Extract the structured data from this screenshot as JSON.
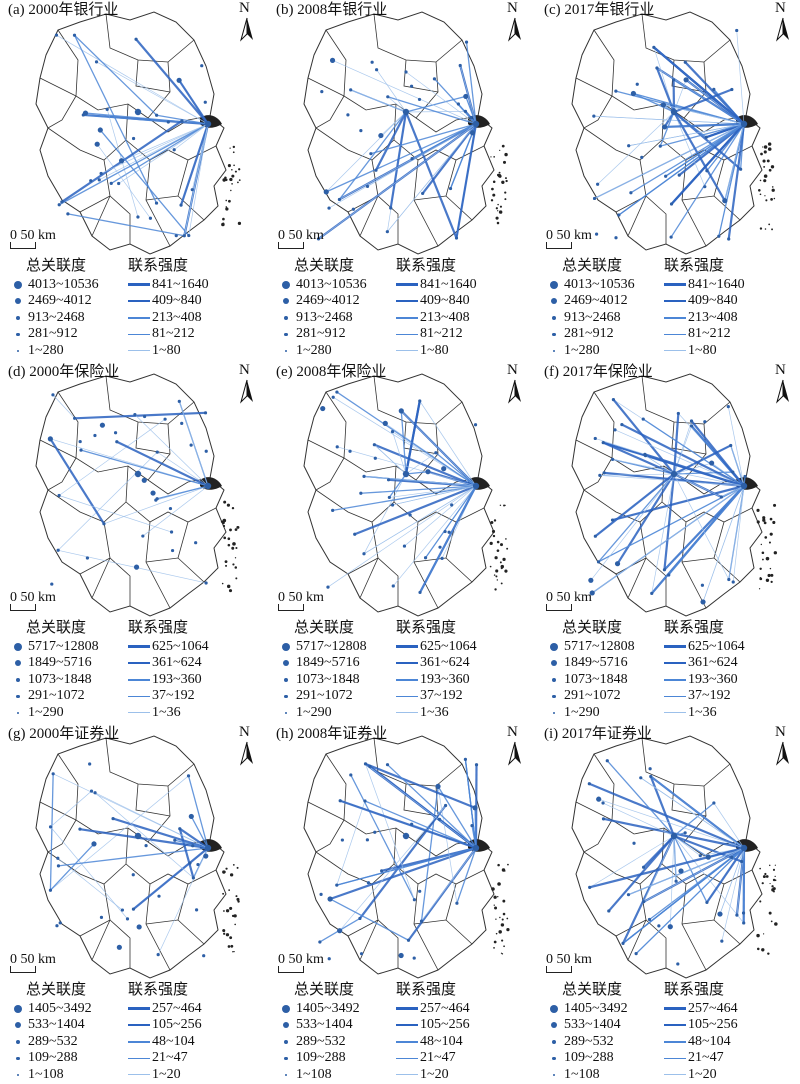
{
  "panels": [
    {
      "id": "a",
      "title": "(a) 2000年银行业",
      "sector": "bank",
      "year": 2000,
      "density": 0.35
    },
    {
      "id": "b",
      "title": "(b) 2008年银行业",
      "sector": "bank",
      "year": 2008,
      "density": 0.6
    },
    {
      "id": "c",
      "title": "(c) 2017年银行业",
      "sector": "bank",
      "year": 2017,
      "density": 1.0
    },
    {
      "id": "d",
      "title": "(d) 2000年保险业",
      "sector": "insurance",
      "year": 2000,
      "density": 0.15
    },
    {
      "id": "e",
      "title": "(e) 2008年保险业",
      "sector": "insurance",
      "year": 2008,
      "density": 0.55
    },
    {
      "id": "f",
      "title": "(f) 2017年保险业",
      "sector": "insurance",
      "year": 2017,
      "density": 1.0
    },
    {
      "id": "g",
      "title": "(g) 2000年证券业",
      "sector": "securities",
      "year": 2000,
      "density": 0.2
    },
    {
      "id": "h",
      "title": "(h) 2008年证券业",
      "sector": "securities",
      "year": 2008,
      "density": 0.4
    },
    {
      "id": "i",
      "title": "(i) 2017年证券业",
      "sector": "securities",
      "year": 2017,
      "density": 0.8
    }
  ],
  "legends": {
    "bank": {
      "node_title": "总关联度",
      "node_classes": [
        "4013~10536",
        "2469~4012",
        "913~2468",
        "281~912",
        "1~280"
      ],
      "link_title": "联系强度",
      "link_classes": [
        "841~1640",
        "409~840",
        "213~408",
        "81~212",
        "1~80"
      ]
    },
    "insurance": {
      "node_title": "总关联度",
      "node_classes": [
        "5717~12808",
        "1849~5716",
        "1073~1848",
        "291~1072",
        "1~290"
      ],
      "link_title": "联系强度",
      "link_classes": [
        "625~1064",
        "361~624",
        "193~360",
        "37~192",
        "1~36"
      ]
    },
    "securities": {
      "node_title": "总关联度",
      "node_classes": [
        "1405~3492",
        "533~1404",
        "289~532",
        "109~288",
        "1~108"
      ],
      "link_title": "联系强度",
      "link_classes": [
        "257~464",
        "105~256",
        "48~104",
        "21~47",
        "1~20"
      ]
    }
  },
  "scale_label": "0  50 km",
  "north_label": "N",
  "colors": {
    "node": "#2d5fa6",
    "link_strong": "#2a62c0",
    "link_mid": "#4c86d6",
    "link_weak": "#9cc0ea",
    "boundary": "#333333"
  }
}
